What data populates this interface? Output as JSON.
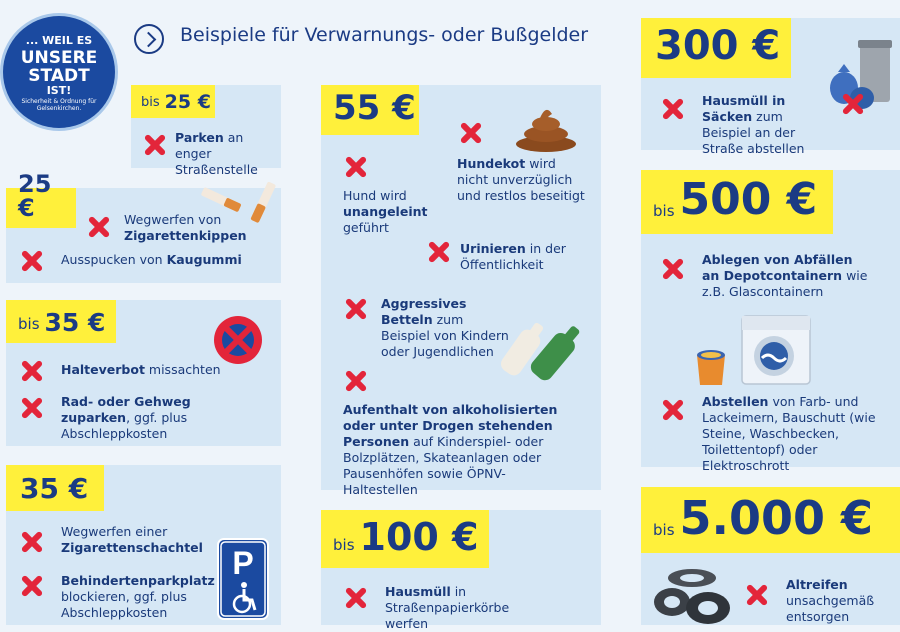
{
  "header": {
    "title": "Beispiele für Verwarnungs-  oder Bußgelder",
    "logo": {
      "line1": "... WEIL ES",
      "line2": "UNSERE",
      "line3": "STADT",
      "line4": "IST!",
      "tagline": "Sicherheit & Ordnung für Gelsenkirchen."
    }
  },
  "cards": {
    "c1": {
      "prefix": "bis",
      "amount": "25 €",
      "items": [
        {
          "bold": "Parken",
          "text": " an enger Straßenstelle"
        }
      ]
    },
    "c2": {
      "amount": "25 €",
      "items": [
        {
          "text": "Wegwerfen von ",
          "bold": "Zigarettenkippen"
        },
        {
          "text": "Ausspucken von ",
          "bold": "Kaugummi"
        }
      ]
    },
    "c3": {
      "prefix": "bis",
      "amount": "35 €",
      "items": [
        {
          "bold": "Halteverbot",
          "text": " missachten"
        },
        {
          "bold": "Rad- oder Gehweg zuparken",
          "text": ", ggf. plus Abschleppkosten"
        }
      ]
    },
    "c4": {
      "amount": "35 €",
      "items": [
        {
          "text": "Wegwerfen einer ",
          "bold": "Zigarettenschachtel"
        },
        {
          "bold": "Behindertenparkplatz",
          "text": " blockieren, ggf. plus Abschleppkosten"
        }
      ]
    },
    "c5": {
      "amount": "55 €",
      "items": [
        {
          "text": "Hund wird ",
          "bold": "unangeleint",
          "text2": " geführt"
        },
        {
          "bold": "Hundekot",
          "text": " wird nicht unverzüglich und restlos beseitigt"
        },
        {
          "bold": "Urinieren",
          "text": " in der Öffentlichkeit"
        },
        {
          "bold": "Aggressives Betteln",
          "text": " zum Beispiel von Kindern oder Jugendlichen"
        },
        {
          "bold": "Aufenthalt von alkoholisierten oder unter Drogen stehenden Personen",
          "text": " auf Kinderspiel- oder Bolzplätzen, Skateanlagen oder Pausenhöfen sowie ÖPNV-Haltestellen"
        }
      ]
    },
    "c6": {
      "prefix": "bis",
      "amount": "100 €",
      "items": [
        {
          "bold": "Hausmüll",
          "text": " in Straßen­papierkörbe werfen"
        }
      ]
    },
    "c7": {
      "amount": "300 €",
      "items": [
        {
          "bold": "Hausmüll in Säcken",
          "text": " zum Beispiel an der Straße abstellen"
        }
      ]
    },
    "c8": {
      "prefix": "bis",
      "amount": "500 €",
      "items": [
        {
          "bold": "Ablegen von Abfällen an Depotcontainern",
          "text": " wie z.B. Glascontainern"
        },
        {
          "bold": "Abstellen",
          "text": " von Farb- und Lack­eimern, Bauschutt (wie Steine, Waschbecken, Toilettentopf) oder Elektroschrott"
        }
      ]
    },
    "c9": {
      "prefix": "bis",
      "amount": "5.000 €",
      "items": [
        {
          "bold": "Altreifen",
          "text": " unsach­gemäß entsorgen"
        }
      ]
    }
  },
  "icons": {
    "cross": "cross-icon",
    "cigarette": "cigarette-butts-icon",
    "no-stopping": "no-stopping-sign-icon",
    "parking": "disabled-parking-sign-icon",
    "dog-poop": "dog-poop-icon",
    "bottles": "bottles-icon",
    "trash": "trash-bin-bags-icon",
    "washer": "washing-machine-icon",
    "paint": "paint-bucket-icon",
    "tires": "tires-icon"
  },
  "colors": {
    "badge": "#fff03b",
    "card": "#d6e7f5",
    "cross": "#e3253a",
    "text": "#1a3a7a"
  }
}
